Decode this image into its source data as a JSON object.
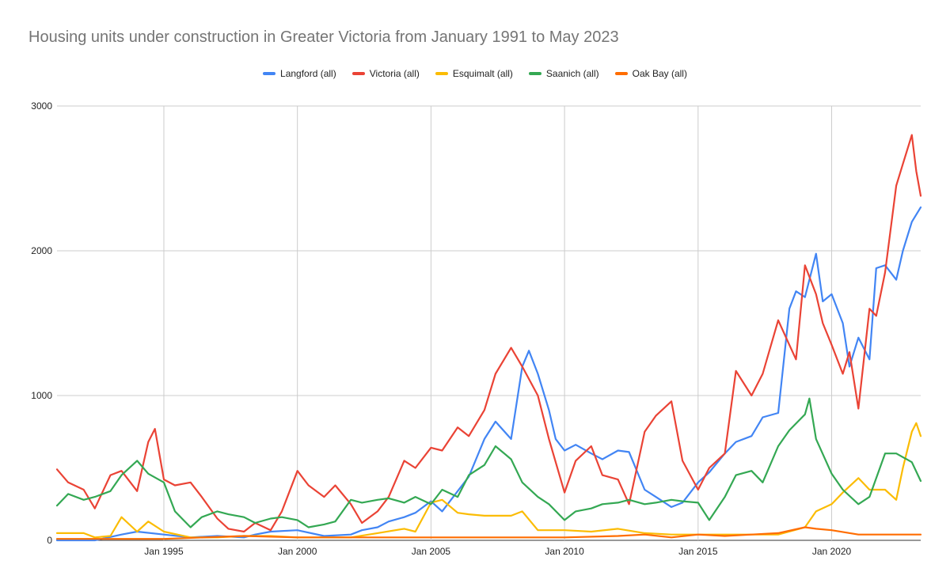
{
  "chart_data": {
    "type": "line",
    "title": "Housing units under construction in Greater Victoria from January 1991 to May 2023",
    "xlabel": "",
    "ylabel": "",
    "x_range": [
      "1991-01",
      "2023-05"
    ],
    "ylim": [
      0,
      3000
    ],
    "y_ticks": [
      "0",
      "1000",
      "2000",
      "3000"
    ],
    "x_ticks": [
      {
        "label": "Jan 1995",
        "date": "1995-01"
      },
      {
        "label": "Jan 2000",
        "date": "2000-01"
      },
      {
        "label": "Jan 2005",
        "date": "2005-01"
      },
      {
        "label": "Jan 2010",
        "date": "2010-01"
      },
      {
        "label": "Jan 2015",
        "date": "2015-01"
      },
      {
        "label": "Jan 2020",
        "date": "2020-01"
      }
    ],
    "grid": true,
    "legend_position": "top",
    "series": [
      {
        "name": "Langford (all)",
        "color": "#4285F4",
        "points": [
          [
            "1991-01",
            0
          ],
          [
            "1992-06",
            0
          ],
          [
            "1993-06",
            40
          ],
          [
            "1994-01",
            60
          ],
          [
            "1995-01",
            40
          ],
          [
            "1996-01",
            20
          ],
          [
            "1997-01",
            30
          ],
          [
            "1998-01",
            20
          ],
          [
            "1998-06",
            40
          ],
          [
            "1999-01",
            60
          ],
          [
            "2000-01",
            70
          ],
          [
            "2001-01",
            30
          ],
          [
            "2002-01",
            40
          ],
          [
            "2002-06",
            70
          ],
          [
            "2003-01",
            90
          ],
          [
            "2003-06",
            130
          ],
          [
            "2004-01",
            160
          ],
          [
            "2004-06",
            190
          ],
          [
            "2005-01",
            270
          ],
          [
            "2005-06",
            200
          ],
          [
            "2006-01",
            340
          ],
          [
            "2006-06",
            440
          ],
          [
            "2007-01",
            700
          ],
          [
            "2007-06",
            820
          ],
          [
            "2008-01",
            700
          ],
          [
            "2008-06",
            1200
          ],
          [
            "2008-09",
            1310
          ],
          [
            "2009-01",
            1150
          ],
          [
            "2009-06",
            900
          ],
          [
            "2009-09",
            700
          ],
          [
            "2010-01",
            620
          ],
          [
            "2010-06",
            660
          ],
          [
            "2011-01",
            600
          ],
          [
            "2011-06",
            560
          ],
          [
            "2012-01",
            620
          ],
          [
            "2012-06",
            610
          ],
          [
            "2013-01",
            350
          ],
          [
            "2013-06",
            300
          ],
          [
            "2014-01",
            230
          ],
          [
            "2014-06",
            260
          ],
          [
            "2015-01",
            400
          ],
          [
            "2015-06",
            470
          ],
          [
            "2016-01",
            600
          ],
          [
            "2016-06",
            680
          ],
          [
            "2017-01",
            720
          ],
          [
            "2017-06",
            850
          ],
          [
            "2018-01",
            880
          ],
          [
            "2018-06",
            1600
          ],
          [
            "2018-09",
            1720
          ],
          [
            "2019-01",
            1680
          ],
          [
            "2019-06",
            1980
          ],
          [
            "2019-09",
            1650
          ],
          [
            "2020-01",
            1700
          ],
          [
            "2020-06",
            1500
          ],
          [
            "2020-09",
            1200
          ],
          [
            "2021-01",
            1400
          ],
          [
            "2021-06",
            1250
          ],
          [
            "2021-09",
            1880
          ],
          [
            "2022-01",
            1900
          ],
          [
            "2022-06",
            1800
          ],
          [
            "2022-09",
            2000
          ],
          [
            "2023-01",
            2200
          ],
          [
            "2023-05",
            2300
          ]
        ]
      },
      {
        "name": "Victoria (all)",
        "color": "#EA4335",
        "points": [
          [
            "1991-01",
            490
          ],
          [
            "1991-06",
            400
          ],
          [
            "1992-01",
            350
          ],
          [
            "1992-06",
            220
          ],
          [
            "1993-01",
            450
          ],
          [
            "1993-06",
            480
          ],
          [
            "1994-01",
            340
          ],
          [
            "1994-06",
            680
          ],
          [
            "1994-09",
            770
          ],
          [
            "1995-01",
            420
          ],
          [
            "1995-06",
            380
          ],
          [
            "1996-01",
            400
          ],
          [
            "1996-06",
            300
          ],
          [
            "1997-01",
            150
          ],
          [
            "1997-06",
            80
          ],
          [
            "1998-01",
            60
          ],
          [
            "1998-06",
            120
          ],
          [
            "1999-01",
            70
          ],
          [
            "1999-06",
            200
          ],
          [
            "2000-01",
            480
          ],
          [
            "2000-06",
            380
          ],
          [
            "2001-01",
            300
          ],
          [
            "2001-06",
            380
          ],
          [
            "2002-01",
            250
          ],
          [
            "2002-06",
            120
          ],
          [
            "2003-01",
            200
          ],
          [
            "2003-06",
            300
          ],
          [
            "2004-01",
            550
          ],
          [
            "2004-06",
            500
          ],
          [
            "2005-01",
            640
          ],
          [
            "2005-06",
            620
          ],
          [
            "2006-01",
            780
          ],
          [
            "2006-06",
            720
          ],
          [
            "2007-01",
            900
          ],
          [
            "2007-06",
            1150
          ],
          [
            "2008-01",
            1330
          ],
          [
            "2008-06",
            1200
          ],
          [
            "2009-01",
            1000
          ],
          [
            "2009-06",
            700
          ],
          [
            "2010-01",
            330
          ],
          [
            "2010-06",
            550
          ],
          [
            "2011-01",
            650
          ],
          [
            "2011-06",
            450
          ],
          [
            "2012-01",
            420
          ],
          [
            "2012-06",
            250
          ],
          [
            "2013-01",
            750
          ],
          [
            "2013-06",
            860
          ],
          [
            "2014-01",
            960
          ],
          [
            "2014-06",
            550
          ],
          [
            "2015-01",
            350
          ],
          [
            "2015-06",
            500
          ],
          [
            "2016-01",
            600
          ],
          [
            "2016-06",
            1170
          ],
          [
            "2017-01",
            1000
          ],
          [
            "2017-06",
            1150
          ],
          [
            "2018-01",
            1520
          ],
          [
            "2018-06",
            1350
          ],
          [
            "2018-09",
            1250
          ],
          [
            "2019-01",
            1900
          ],
          [
            "2019-06",
            1700
          ],
          [
            "2019-09",
            1500
          ],
          [
            "2020-01",
            1350
          ],
          [
            "2020-06",
            1150
          ],
          [
            "2020-09",
            1300
          ],
          [
            "2021-01",
            910
          ],
          [
            "2021-06",
            1600
          ],
          [
            "2021-09",
            1550
          ],
          [
            "2022-01",
            1850
          ],
          [
            "2022-06",
            2450
          ],
          [
            "2022-09",
            2600
          ],
          [
            "2023-01",
            2800
          ],
          [
            "2023-03",
            2550
          ],
          [
            "2023-05",
            2380
          ]
        ]
      },
      {
        "name": "Esquimalt (all)",
        "color": "#FBBC04",
        "points": [
          [
            "1991-01",
            50
          ],
          [
            "1992-01",
            50
          ],
          [
            "1992-06",
            20
          ],
          [
            "1993-01",
            30
          ],
          [
            "1993-06",
            160
          ],
          [
            "1994-01",
            60
          ],
          [
            "1994-06",
            130
          ],
          [
            "1995-01",
            60
          ],
          [
            "1996-01",
            20
          ],
          [
            "1997-01",
            20
          ],
          [
            "1998-01",
            30
          ],
          [
            "1999-01",
            30
          ],
          [
            "2000-01",
            20
          ],
          [
            "2001-01",
            20
          ],
          [
            "2002-01",
            20
          ],
          [
            "2003-01",
            50
          ],
          [
            "2004-01",
            80
          ],
          [
            "2004-06",
            60
          ],
          [
            "2005-01",
            260
          ],
          [
            "2005-06",
            280
          ],
          [
            "2006-01",
            190
          ],
          [
            "2006-06",
            180
          ],
          [
            "2007-01",
            170
          ],
          [
            "2007-06",
            170
          ],
          [
            "2008-01",
            170
          ],
          [
            "2008-06",
            200
          ],
          [
            "2009-01",
            70
          ],
          [
            "2010-01",
            70
          ],
          [
            "2011-01",
            60
          ],
          [
            "2012-01",
            80
          ],
          [
            "2013-01",
            50
          ],
          [
            "2014-01",
            40
          ],
          [
            "2015-01",
            40
          ],
          [
            "2016-01",
            40
          ],
          [
            "2017-01",
            40
          ],
          [
            "2018-01",
            40
          ],
          [
            "2019-01",
            90
          ],
          [
            "2019-06",
            200
          ],
          [
            "2020-01",
            250
          ],
          [
            "2020-06",
            330
          ],
          [
            "2021-01",
            430
          ],
          [
            "2021-06",
            350
          ],
          [
            "2022-01",
            350
          ],
          [
            "2022-06",
            280
          ],
          [
            "2022-09",
            500
          ],
          [
            "2023-01",
            750
          ],
          [
            "2023-03",
            810
          ],
          [
            "2023-05",
            720
          ]
        ]
      },
      {
        "name": "Saanich (all)",
        "color": "#34A853",
        "points": [
          [
            "1991-01",
            240
          ],
          [
            "1991-06",
            320
          ],
          [
            "1992-01",
            280
          ],
          [
            "1992-06",
            300
          ],
          [
            "1993-01",
            340
          ],
          [
            "1993-06",
            450
          ],
          [
            "1994-01",
            550
          ],
          [
            "1994-06",
            460
          ],
          [
            "1995-01",
            400
          ],
          [
            "1995-06",
            200
          ],
          [
            "1996-01",
            90
          ],
          [
            "1996-06",
            160
          ],
          [
            "1997-01",
            200
          ],
          [
            "1997-06",
            180
          ],
          [
            "1998-01",
            160
          ],
          [
            "1998-06",
            120
          ],
          [
            "1999-01",
            150
          ],
          [
            "1999-06",
            160
          ],
          [
            "2000-01",
            140
          ],
          [
            "2000-06",
            90
          ],
          [
            "2001-01",
            110
          ],
          [
            "2001-06",
            130
          ],
          [
            "2002-01",
            280
          ],
          [
            "2002-06",
            260
          ],
          [
            "2003-01",
            280
          ],
          [
            "2003-06",
            290
          ],
          [
            "2004-01",
            260
          ],
          [
            "2004-06",
            300
          ],
          [
            "2005-01",
            250
          ],
          [
            "2005-06",
            350
          ],
          [
            "2006-01",
            300
          ],
          [
            "2006-06",
            450
          ],
          [
            "2007-01",
            520
          ],
          [
            "2007-06",
            650
          ],
          [
            "2008-01",
            560
          ],
          [
            "2008-06",
            400
          ],
          [
            "2009-01",
            300
          ],
          [
            "2009-06",
            250
          ],
          [
            "2010-01",
            140
          ],
          [
            "2010-06",
            200
          ],
          [
            "2011-01",
            220
          ],
          [
            "2011-06",
            250
          ],
          [
            "2012-01",
            260
          ],
          [
            "2012-06",
            280
          ],
          [
            "2013-01",
            250
          ],
          [
            "2013-06",
            260
          ],
          [
            "2014-01",
            280
          ],
          [
            "2014-06",
            270
          ],
          [
            "2015-01",
            260
          ],
          [
            "2015-06",
            140
          ],
          [
            "2016-01",
            300
          ],
          [
            "2016-06",
            450
          ],
          [
            "2017-01",
            480
          ],
          [
            "2017-06",
            400
          ],
          [
            "2018-01",
            650
          ],
          [
            "2018-06",
            760
          ],
          [
            "2019-01",
            870
          ],
          [
            "2019-03",
            980
          ],
          [
            "2019-06",
            700
          ],
          [
            "2020-01",
            460
          ],
          [
            "2020-06",
            350
          ],
          [
            "2021-01",
            250
          ],
          [
            "2021-06",
            300
          ],
          [
            "2022-01",
            600
          ],
          [
            "2022-06",
            600
          ],
          [
            "2023-01",
            540
          ],
          [
            "2023-05",
            410
          ]
        ]
      },
      {
        "name": "Oak Bay (all)",
        "color": "#FF6D01",
        "points": [
          [
            "1991-01",
            10
          ],
          [
            "1995-01",
            10
          ],
          [
            "1998-01",
            30
          ],
          [
            "2000-01",
            20
          ],
          [
            "2005-01",
            20
          ],
          [
            "2010-01",
            20
          ],
          [
            "2012-01",
            30
          ],
          [
            "2013-01",
            40
          ],
          [
            "2014-01",
            20
          ],
          [
            "2015-01",
            40
          ],
          [
            "2016-01",
            30
          ],
          [
            "2017-01",
            40
          ],
          [
            "2018-01",
            50
          ],
          [
            "2019-01",
            90
          ],
          [
            "2019-06",
            80
          ],
          [
            "2020-01",
            70
          ],
          [
            "2021-01",
            40
          ],
          [
            "2022-01",
            40
          ],
          [
            "2023-05",
            40
          ]
        ]
      }
    ]
  }
}
